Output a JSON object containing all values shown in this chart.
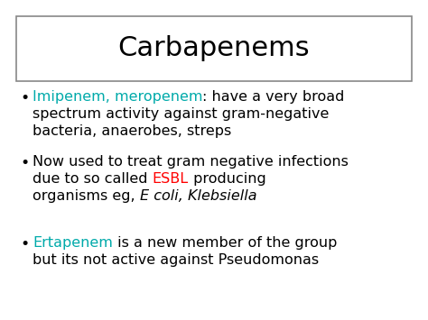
{
  "title": "Carbapenems",
  "title_fontsize": 22,
  "title_color": "#000000",
  "background_color": "#ffffff",
  "border_color": "#888888",
  "bullet_color": "#000000",
  "cyan_color": "#00AAAA",
  "red_color": "#FF0000",
  "bullet_symbol": "•",
  "text_size": 11.5,
  "fig_width": 4.74,
  "fig_height": 3.55,
  "dpi": 100,
  "bullets": [
    {
      "lines": [
        [
          {
            "text": "Imipenem, meropenem",
            "color": "#00AAAA",
            "style": "normal"
          },
          {
            "text": ": have a very broad",
            "color": "#000000",
            "style": "normal"
          }
        ],
        [
          {
            "text": "spectrum activity against gram-negative",
            "color": "#000000",
            "style": "normal"
          }
        ],
        [
          {
            "text": "bacteria, anaerobes, streps",
            "color": "#000000",
            "style": "normal"
          }
        ]
      ]
    },
    {
      "lines": [
        [
          {
            "text": "Now used to treat gram negative infections",
            "color": "#000000",
            "style": "normal"
          }
        ],
        [
          {
            "text": "due to so called ",
            "color": "#000000",
            "style": "normal"
          },
          {
            "text": "ESBL",
            "color": "#FF0000",
            "style": "normal"
          },
          {
            "text": " producing",
            "color": "#000000",
            "style": "normal"
          }
        ],
        [
          {
            "text": "organisms eg, ",
            "color": "#000000",
            "style": "normal"
          },
          {
            "text": "E coli, Klebsiella",
            "color": "#000000",
            "style": "italic"
          }
        ]
      ]
    },
    {
      "lines": [
        [
          {
            "text": "Ertapenem",
            "color": "#00AAAA",
            "style": "normal"
          },
          {
            "text": " is a new member of the group",
            "color": "#000000",
            "style": "normal"
          }
        ],
        [
          {
            "text": "but its not active against Pseudomonas",
            "color": "#000000",
            "style": "normal"
          }
        ]
      ]
    }
  ]
}
